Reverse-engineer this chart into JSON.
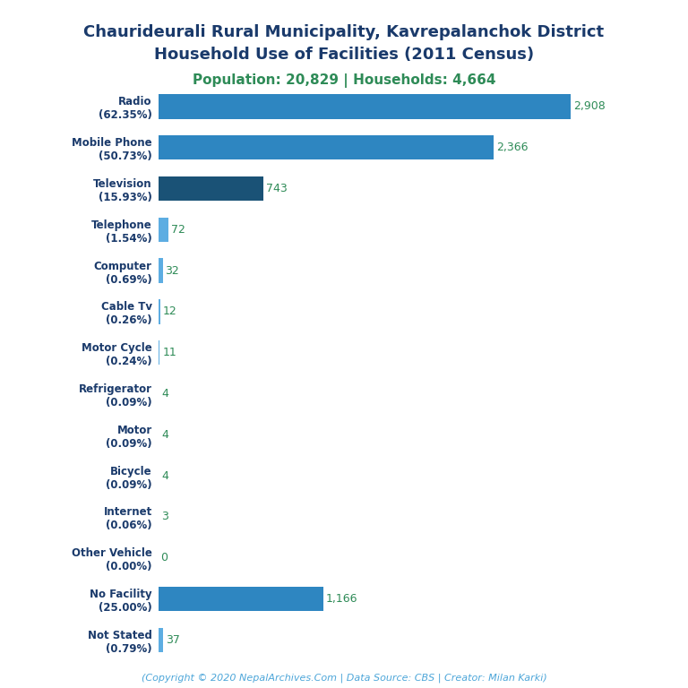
{
  "title_line1": "Chaurideurali Rural Municipality, Kavrepalanchok District",
  "title_line2": "Household Use of Facilities (2011 Census)",
  "subtitle": "Population: 20,829 | Households: 4,664",
  "footer": "(Copyright © 2020 NepalArchives.Com | Data Source: CBS | Creator: Milan Karki)",
  "categories": [
    "Radio\n(62.35%)",
    "Mobile Phone\n(50.73%)",
    "Television\n(15.93%)",
    "Telephone\n(1.54%)",
    "Computer\n(0.69%)",
    "Cable Tv\n(0.26%)",
    "Motor Cycle\n(0.24%)",
    "Refrigerator\n(0.09%)",
    "Motor\n(0.09%)",
    "Bicycle\n(0.09%)",
    "Internet\n(0.06%)",
    "Other Vehicle\n(0.00%)",
    "No Facility\n(25.00%)",
    "Not Stated\n(0.79%)"
  ],
  "values": [
    2908,
    2366,
    743,
    72,
    32,
    12,
    11,
    4,
    4,
    4,
    3,
    0,
    1166,
    37
  ],
  "bar_colors": [
    "#2e86c1",
    "#2e86c1",
    "#1a5276",
    "#5dade2",
    "#5dade2",
    "#5dade2",
    "#5dade2",
    "#5dade2",
    "#5dade2",
    "#5dade2",
    "#5dade2",
    "#5dade2",
    "#2e86c1",
    "#5dade2"
  ],
  "title_color": "#1a3a6b",
  "subtitle_color": "#2e8b57",
  "value_color": "#2e8b57",
  "footer_color": "#4da6d9",
  "background_color": "#ffffff",
  "xlim": [
    0,
    3300
  ]
}
